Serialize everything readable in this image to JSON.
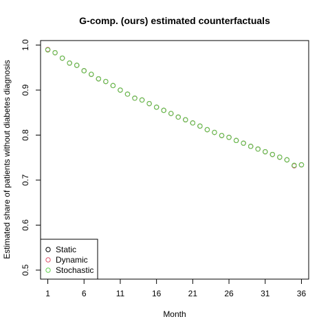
{
  "chart_data": {
    "type": "scatter",
    "title": "G-comp. (ours) estimated counterfactuals",
    "xlabel": "Month",
    "ylabel": "Estimated share of patients without diabetes diagnosis",
    "xlim": [
      0,
      37
    ],
    "ylim": [
      0.48,
      1.01
    ],
    "xticks": [
      1,
      6,
      11,
      16,
      21,
      26,
      31,
      36
    ],
    "yticks": [
      0.5,
      0.6,
      0.7,
      0.8,
      0.9,
      1.0
    ],
    "ytick_labels": [
      "0.5",
      "0.6",
      "0.7",
      "0.8",
      "0.9",
      "1.0"
    ],
    "grid": false,
    "legend_position": "bottom-left",
    "x": [
      1,
      2,
      3,
      4,
      5,
      6,
      7,
      8,
      9,
      10,
      11,
      12,
      13,
      14,
      15,
      16,
      17,
      18,
      19,
      20,
      21,
      22,
      23,
      24,
      25,
      26,
      27,
      28,
      29,
      30,
      31,
      32,
      33,
      34,
      35,
      36
    ],
    "series": [
      {
        "name": "Static",
        "color": "#000000",
        "values": [
          0.99,
          0.983,
          0.971,
          0.96,
          0.955,
          0.943,
          0.935,
          0.925,
          0.919,
          0.91,
          0.9,
          0.891,
          0.882,
          0.878,
          0.87,
          0.862,
          0.855,
          0.848,
          0.84,
          0.834,
          0.827,
          0.82,
          0.812,
          0.806,
          0.799,
          0.795,
          0.788,
          0.782,
          0.775,
          0.769,
          0.763,
          0.757,
          0.751,
          0.745,
          0.732,
          0.734
        ]
      },
      {
        "name": "Dynamic",
        "color": "#df536b",
        "values": [
          0.99,
          0.983,
          0.971,
          0.96,
          0.955,
          0.943,
          0.935,
          0.925,
          0.919,
          0.91,
          0.9,
          0.891,
          0.882,
          0.878,
          0.87,
          0.862,
          0.855,
          0.848,
          0.84,
          0.834,
          0.827,
          0.82,
          0.812,
          0.806,
          0.799,
          0.795,
          0.788,
          0.782,
          0.775,
          0.769,
          0.763,
          0.757,
          0.751,
          0.745,
          0.732,
          0.734
        ]
      },
      {
        "name": "Stochastic",
        "color": "#61d04f",
        "values": [
          0.989,
          0.983,
          0.971,
          0.96,
          0.955,
          0.943,
          0.935,
          0.925,
          0.919,
          0.91,
          0.9,
          0.891,
          0.882,
          0.878,
          0.87,
          0.862,
          0.855,
          0.848,
          0.84,
          0.834,
          0.827,
          0.82,
          0.812,
          0.806,
          0.799,
          0.795,
          0.788,
          0.782,
          0.775,
          0.769,
          0.763,
          0.757,
          0.751,
          0.745,
          0.733,
          0.734
        ]
      }
    ]
  }
}
